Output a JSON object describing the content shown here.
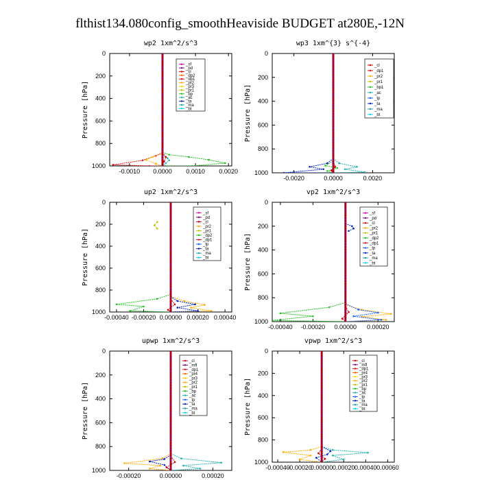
{
  "figure_title": "flthist134.080config_smoothHeaviside  BUDGET at280E,-12N",
  "chart_data": [
    {
      "type": "line",
      "title": "wp2  1xm^2/s^3",
      "ylabel": "Pressure [hPa]",
      "xlim": [
        -0.0016,
        0.0021
      ],
      "ylim": [
        1000,
        0
      ],
      "xticks": [
        -0.001,
        0.0,
        0.001,
        0.002
      ],
      "xtick_labels": [
        "-0.0010",
        "0.0000",
        "0.0010",
        "0.0020"
      ],
      "yticks": [
        0,
        200,
        400,
        600,
        800,
        1000
      ],
      "legend": [
        "_sf",
        "_pd",
        "_cl",
        "_dp2",
        "_dp1",
        "_pr2",
        "_pr3",
        "_pr1",
        "_bp",
        "_ac",
        "_ta",
        "_ma",
        "_bt"
      ],
      "colors": [
        "#e000c0",
        "#800080",
        "#d40000",
        "#ff6000",
        "#e01010",
        "#ffaa00",
        "#ffd200",
        "#c0c000",
        "#20c020",
        "#20b0b0",
        "#0020c0",
        "#20a0a0",
        "#00d0f0"
      ],
      "series": [
        {
          "name": "_bp",
          "x": [
            0,
            0.0002,
            0.0008,
            0.0014,
            0.0019,
            0.0009,
            0.0001
          ],
          "y": [
            880,
            900,
            920,
            945,
            975,
            1000,
            1000
          ]
        },
        {
          "name": "_dp1",
          "x": [
            0,
            -0.0002,
            -0.0006,
            -0.0015,
            -0.0004,
            0
          ],
          "y": [
            880,
            910,
            950,
            990,
            1000,
            1000
          ]
        },
        {
          "name": "_ac",
          "x": [
            0,
            0.00015,
            0.0002,
            0.0001,
            0
          ],
          "y": [
            900,
            930,
            950,
            975,
            1000
          ]
        },
        {
          "name": "_pr2",
          "x": [
            0,
            -0.0003,
            -0.0005,
            -0.0002,
            0
          ],
          "y": [
            890,
            920,
            945,
            980,
            1000
          ]
        },
        {
          "name": "_cl",
          "x": [
            0,
            0.0001,
            5e-05,
            0
          ],
          "y": [
            880,
            920,
            960,
            1000
          ]
        }
      ]
    },
    {
      "type": "line",
      "title": "wp3  1xm^{3} s^{-4}",
      "ylabel": "Pressure [hPa]",
      "xlim": [
        -0.0031,
        0.0031
      ],
      "ylim": [
        1000,
        0
      ],
      "xticks": [
        -0.002,
        0.0,
        0.002
      ],
      "xtick_labels": [
        "-0.0020",
        "0.0000",
        "0.0020"
      ],
      "yticks": [
        0,
        200,
        400,
        600,
        800,
        1000
      ],
      "legend": [
        "_cl",
        "_dp1",
        "_pr2",
        "_pr1",
        "_bp1",
        "_ac",
        "_tp",
        "_ta",
        "_ma",
        "_bt"
      ],
      "colors": [
        "#d40000",
        "#e01010",
        "#ffaa00",
        "#c0c000",
        "#20c020",
        "#20b0b0",
        "#1060ff",
        "#0020c0",
        "#20a0a0",
        "#00d0f0"
      ],
      "series": [
        {
          "name": "_ta",
          "x": [
            0,
            -0.0003,
            -0.0012,
            -0.0005,
            -0.0025,
            0
          ],
          "y": [
            880,
            920,
            950,
            970,
            1000,
            1000
          ]
        },
        {
          "name": "_ac",
          "x": [
            0,
            0.0003,
            0.0012,
            0.0006,
            0.0016,
            0
          ],
          "y": [
            880,
            920,
            950,
            970,
            995,
            1000
          ]
        },
        {
          "name": "_bp1",
          "x": [
            0,
            -0.0004,
            0.0002,
            -0.0003,
            0
          ],
          "y": [
            900,
            940,
            960,
            985,
            1000
          ]
        },
        {
          "name": "_cl",
          "x": [
            0,
            0.0001,
            -0.0001,
            0
          ],
          "y": [
            900,
            950,
            980,
            1000
          ]
        }
      ]
    },
    {
      "type": "line",
      "title": "up2  1xm^2/s^3",
      "ylabel": "Pressure [hPa]",
      "xlim": [
        -0.00045,
        0.00045
      ],
      "ylim": [
        1000,
        0
      ],
      "xticks": [
        -0.0004,
        -0.0002,
        0.0,
        0.0002,
        0.0004
      ],
      "xtick_labels": [
        "-0.00040",
        "-0.00020",
        "0.00000",
        "0.00020",
        "0.00040"
      ],
      "yticks": [
        0,
        200,
        400,
        600,
        800,
        1000
      ],
      "legend": [
        "_sf",
        "_pd",
        "_cl",
        "_pr2",
        "_pr1",
        "_dp2",
        "_dp1",
        "_tp",
        "_ta",
        "_ma",
        "_bt"
      ],
      "colors": [
        "#e000c0",
        "#800080",
        "#d40000",
        "#ffaa00",
        "#c0c000",
        "#20c020",
        "#e01010",
        "#1060ff",
        "#0020c0",
        "#20a0a0",
        "#00d0f0"
      ],
      "series": [
        {
          "name": "_pr1",
          "x": [
            -0.0001,
            -0.00012,
            -0.0001
          ],
          "y": [
            180,
            210,
            240
          ]
        },
        {
          "name": "_dp2",
          "x": [
            0,
            -0.0001,
            -0.0004,
            -0.0002,
            -0.0003,
            0
          ],
          "y": [
            840,
            880,
            930,
            950,
            990,
            1000
          ]
        },
        {
          "name": "_pr2",
          "x": [
            0,
            0.0001,
            0.00025,
            0.00015,
            0.0003,
            0
          ],
          "y": [
            860,
            900,
            935,
            960,
            990,
            1000
          ]
        },
        {
          "name": "_ta",
          "x": [
            0,
            5e-05,
            0.00018,
            5e-05,
            0.0002,
            0
          ],
          "y": [
            860,
            900,
            930,
            960,
            990,
            1000
          ]
        },
        {
          "name": "_cl",
          "x": [
            0,
            3e-05,
            -2e-05,
            0
          ],
          "y": [
            880,
            930,
            980,
            1000
          ]
        }
      ]
    },
    {
      "type": "line",
      "title": "vp2  1xm^2/s^3",
      "ylabel": "Pressure [hPa]",
      "xlim": [
        -0.00045,
        0.0003
      ],
      "ylim": [
        1000,
        0
      ],
      "xticks": [
        -0.0004,
        -0.0002,
        0.0,
        0.0002
      ],
      "xtick_labels": [
        "-0.00040",
        "-0.00020",
        "0.00000",
        "0.00020"
      ],
      "yticks": [
        0,
        200,
        400,
        600,
        800,
        1000
      ],
      "legend": [
        "_sf",
        "_pd",
        "_cl",
        "_pr2",
        "_pr1",
        "_dp2",
        "_dp1",
        "_tp",
        "_ta",
        "_ma",
        "_bt"
      ],
      "colors": [
        "#e000c0",
        "#800080",
        "#d40000",
        "#ffaa00",
        "#c0c000",
        "#20c020",
        "#e01010",
        "#1060ff",
        "#0020c0",
        "#20a0a0",
        "#00d0f0"
      ],
      "series": [
        {
          "name": "_ta",
          "x": [
            0,
            4e-05,
            5e-05,
            2e-05
          ],
          "y": [
            180,
            200,
            220,
            240
          ]
        },
        {
          "name": "_dp2",
          "x": [
            0,
            -0.0001,
            -0.0004,
            -0.0002,
            -0.00045,
            0
          ],
          "y": [
            840,
            880,
            930,
            955,
            990,
            1000
          ]
        },
        {
          "name": "_pr2",
          "x": [
            0,
            0.0001,
            0.00028,
            0.0001,
            0.00025,
            0
          ],
          "y": [
            860,
            900,
            935,
            960,
            985,
            1000
          ]
        },
        {
          "name": "_tp",
          "x": [
            0,
            8e-05,
            0.0002,
            5e-05,
            0.00022,
            0
          ],
          "y": [
            850,
            900,
            925,
            955,
            985,
            1000
          ]
        },
        {
          "name": "_cl",
          "x": [
            0,
            2e-05,
            -2e-05,
            0
          ],
          "y": [
            870,
            920,
            975,
            1000
          ]
        }
      ]
    },
    {
      "type": "line",
      "title": "upwp  1xm^2/s^3",
      "ylabel": "Pressure [hPa]",
      "xlim": [
        -0.00029,
        0.00029
      ],
      "ylim": [
        1000,
        0
      ],
      "xticks": [
        -0.0002,
        0.0,
        0.0002
      ],
      "xtick_labels": [
        "-0.00020",
        "0.00000",
        "0.00020"
      ],
      "yticks": [
        0,
        200,
        400,
        600,
        800,
        1000
      ],
      "legend": [
        "_cl",
        "_mfl",
        "_dp1",
        "_pr4",
        "_pr3",
        "_pr2",
        "_pr1",
        "_bp",
        "_ac",
        "_tp",
        "_ta",
        "_ma",
        "_bt"
      ],
      "colors": [
        "#d40000",
        "#800080",
        "#e01010",
        "#ff6000",
        "#ffd200",
        "#ffaa00",
        "#c0c000",
        "#20c020",
        "#20b0b0",
        "#1060ff",
        "#0020c0",
        "#20a0a0",
        "#00d0f0"
      ],
      "series": [
        {
          "name": "_pr2",
          "x": [
            0,
            -4e-05,
            -0.00022,
            -5e-05,
            -0.0001,
            0
          ],
          "y": [
            860,
            900,
            940,
            960,
            985,
            1000
          ]
        },
        {
          "name": "_ac",
          "x": [
            0,
            5e-05,
            0.00024,
            6e-05,
            0.00014,
            0
          ],
          "y": [
            860,
            900,
            935,
            960,
            985,
            1000
          ]
        },
        {
          "name": "_ta",
          "x": [
            0,
            -3e-05,
            -0.0001,
            -3e-05,
            0
          ],
          "y": [
            870,
            905,
            925,
            955,
            1000
          ]
        },
        {
          "name": "_cl",
          "x": [
            0,
            2e-05,
            -2e-05,
            0
          ],
          "y": [
            880,
            930,
            975,
            1000
          ]
        }
      ]
    },
    {
      "type": "line",
      "title": "vpwp  1xm^2/s^3",
      "ylabel": "Pressure [hPa]",
      "xlim": [
        -0.00045,
        0.00066
      ],
      "ylim": [
        1000,
        0
      ],
      "xticks": [
        -0.0004,
        -0.0002,
        0.0,
        0.0002,
        0.0004,
        0.0006
      ],
      "xtick_labels": [
        "-0.00040",
        "-0.00020",
        "0.00000",
        "0.00020",
        "0.00040",
        "0.00060"
      ],
      "yticks": [
        0,
        200,
        400,
        600,
        800,
        1000
      ],
      "legend": [
        "_cl",
        "_mfl",
        "_dp1",
        "_pr4",
        "_pr3",
        "_pr2",
        "_pr1",
        "_bp",
        "_ac",
        "_tp",
        "_ta",
        "_ma",
        "_bt"
      ],
      "colors": [
        "#d40000",
        "#800080",
        "#e01010",
        "#ff6000",
        "#ffd200",
        "#ffaa00",
        "#c0c000",
        "#20c020",
        "#20b0b0",
        "#1060ff",
        "#0020c0",
        "#20a0a0",
        "#00d0f0"
      ],
      "series": [
        {
          "name": "_pr2",
          "x": [
            0,
            -0.0001,
            -0.00035,
            -0.0001,
            -0.0002,
            0
          ],
          "y": [
            860,
            890,
            910,
            940,
            975,
            1000
          ]
        },
        {
          "name": "_ac",
          "x": [
            0,
            0.0001,
            0.00042,
            0.0001,
            0.0002,
            0
          ],
          "y": [
            860,
            890,
            915,
            940,
            975,
            1000
          ]
        },
        {
          "name": "_ta",
          "x": [
            0,
            8e-05,
            5e-05,
            -5e-05,
            0
          ],
          "y": [
            860,
            900,
            930,
            960,
            1000
          ]
        },
        {
          "name": "_cl",
          "x": [
            0,
            -3e-05,
            3e-05,
            0
          ],
          "y": [
            880,
            920,
            970,
            1000
          ]
        }
      ]
    }
  ]
}
